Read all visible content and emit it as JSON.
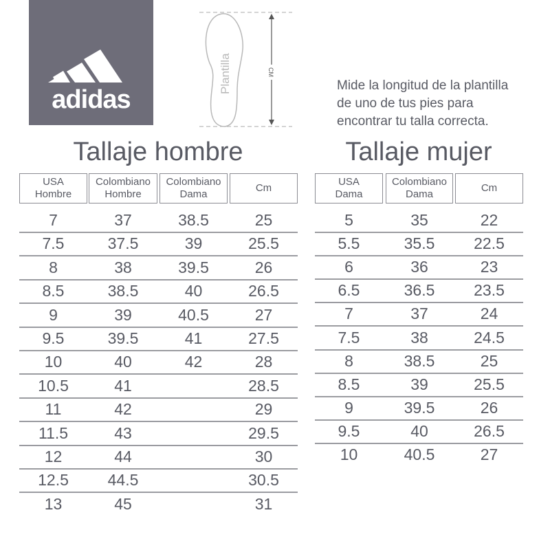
{
  "logo": {
    "text": "adidas",
    "background": "#6e6d79"
  },
  "insole": {
    "label": "Plantilla",
    "measure_label": "CM"
  },
  "instructions": [
    "Mide la longitud de la plantilla",
    "de uno de tus pies para",
    "encontrar tu talla correcta."
  ],
  "men": {
    "title": "Tallaje hombre",
    "headers": [
      [
        "USA",
        "Hombre"
      ],
      [
        "Colombiano",
        "Hombre"
      ],
      [
        "Colombiano",
        "Dama"
      ],
      [
        "Cm",
        ""
      ]
    ],
    "rows": [
      [
        "7",
        "37",
        "38.5",
        "25"
      ],
      [
        "7.5",
        "37.5",
        "39",
        "25.5"
      ],
      [
        "8",
        "38",
        "39.5",
        "26"
      ],
      [
        "8.5",
        "38.5",
        "40",
        "26.5"
      ],
      [
        "9",
        "39",
        "40.5",
        "27"
      ],
      [
        "9.5",
        "39.5",
        "41",
        "27.5"
      ],
      [
        "10",
        "40",
        "42",
        "28"
      ],
      [
        "10.5",
        "41",
        "",
        "28.5"
      ],
      [
        "11",
        "42",
        "",
        "29"
      ],
      [
        "11.5",
        "43",
        "",
        "29.5"
      ],
      [
        "12",
        "44",
        "",
        "30"
      ],
      [
        "12.5",
        "44.5",
        "",
        "30.5"
      ],
      [
        "13",
        "45",
        "",
        "31"
      ]
    ]
  },
  "women": {
    "title": "Tallaje mujer",
    "headers": [
      [
        "USA",
        "Dama"
      ],
      [
        "Colombiano",
        "Dama"
      ],
      [
        "Cm",
        ""
      ]
    ],
    "rows": [
      [
        "5",
        "35",
        "22"
      ],
      [
        "5.5",
        "35.5",
        "22.5"
      ],
      [
        "6",
        "36",
        "23"
      ],
      [
        "6.5",
        "36.5",
        "23.5"
      ],
      [
        "7",
        "37",
        "24"
      ],
      [
        "7.5",
        "38",
        "24.5"
      ],
      [
        "8",
        "38.5",
        "25"
      ],
      [
        "8.5",
        "39",
        "25.5"
      ],
      [
        "9",
        "39.5",
        "26"
      ],
      [
        "9.5",
        "40",
        "26.5"
      ],
      [
        "10",
        "40.5",
        "27"
      ]
    ]
  }
}
